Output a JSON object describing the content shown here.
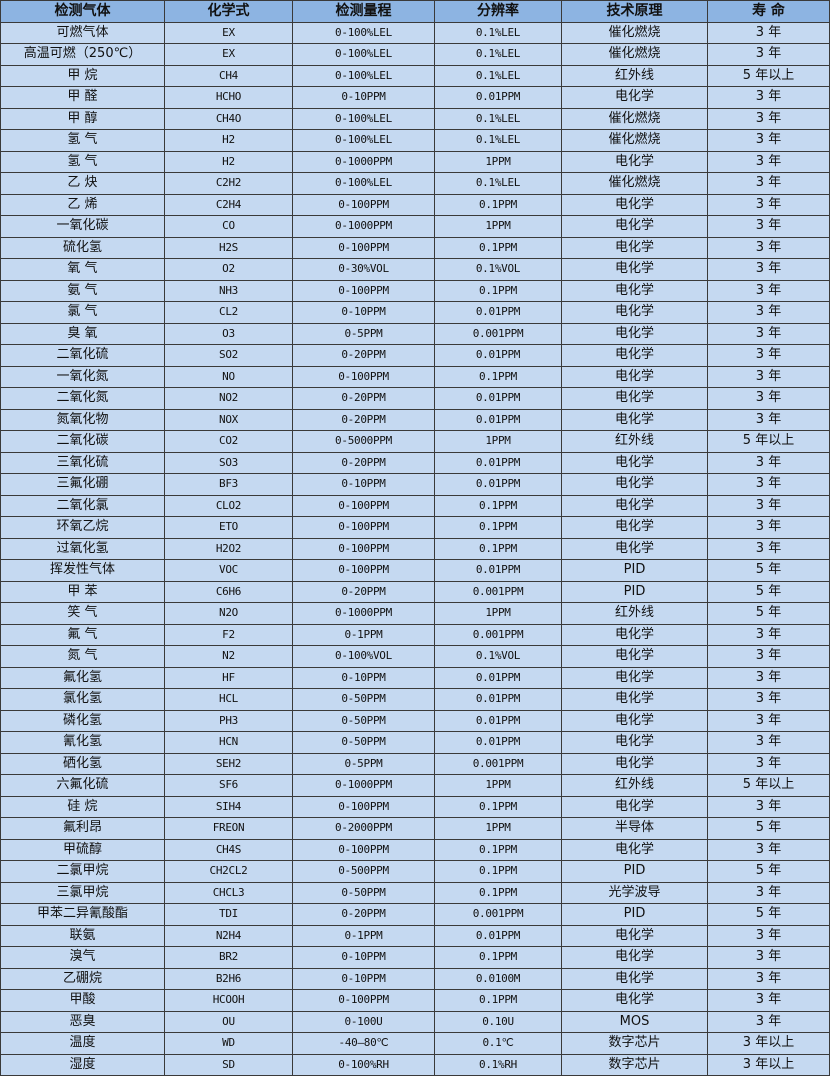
{
  "colors": {
    "header_bg": "#8db4e2",
    "cell_bg": "#c5d9f1",
    "border": "#3a3a3a"
  },
  "headers": [
    "检测气体",
    "化学式",
    "检测量程",
    "分辨率",
    "技术原理",
    "寿 命"
  ],
  "rows": [
    [
      "可燃气体",
      "EX",
      "0-100%LEL",
      "0.1%LEL",
      "催化燃烧",
      "3 年"
    ],
    [
      "高温可燃（250℃）",
      "EX",
      "0-100%LEL",
      "0.1%LEL",
      "催化燃烧",
      "3 年"
    ],
    [
      "甲 烷",
      "CH4",
      "0-100%LEL",
      "0.1%LEL",
      "红外线",
      "5 年以上"
    ],
    [
      "甲 醛",
      "HCHO",
      "0-10PPM",
      "0.01PPM",
      "电化学",
      "3 年"
    ],
    [
      "甲 醇",
      "CH4O",
      "0-100%LEL",
      "0.1%LEL",
      "催化燃烧",
      "3 年"
    ],
    [
      "氢 气",
      "H2",
      "0-100%LEL",
      "0.1%LEL",
      "催化燃烧",
      "3 年"
    ],
    [
      "氢 气",
      "H2",
      "0-1000PPM",
      "1PPM",
      "电化学",
      "3 年"
    ],
    [
      "乙 炔",
      "C2H2",
      "0-100%LEL",
      "0.1%LEL",
      "催化燃烧",
      "3 年"
    ],
    [
      "乙 烯",
      "C2H4",
      "0-100PPM",
      "0.1PPM",
      "电化学",
      "3 年"
    ],
    [
      "一氧化碳",
      "CO",
      "0-1000PPM",
      "1PPM",
      "电化学",
      "3 年"
    ],
    [
      "硫化氢",
      "H2S",
      "0-100PPM",
      "0.1PPM",
      "电化学",
      "3 年"
    ],
    [
      "氧 气",
      "O2",
      "0-30%VOL",
      "0.1%VOL",
      "电化学",
      "3 年"
    ],
    [
      "氨 气",
      "NH3",
      "0-100PPM",
      "0.1PPM",
      "电化学",
      "3 年"
    ],
    [
      "氯 气",
      "CL2",
      "0-10PPM",
      "0.01PPM",
      "电化学",
      "3 年"
    ],
    [
      "臭 氧",
      "O3",
      "0-5PPM",
      "0.001PPM",
      "电化学",
      "3 年"
    ],
    [
      "二氧化硫",
      "SO2",
      "0-20PPM",
      "0.01PPM",
      "电化学",
      "3 年"
    ],
    [
      "一氧化氮",
      "NO",
      "0-100PPM",
      "0.1PPM",
      "电化学",
      "3 年"
    ],
    [
      "二氧化氮",
      "NO2",
      "0-20PPM",
      "0.01PPM",
      "电化学",
      "3 年"
    ],
    [
      "氮氧化物",
      "NOX",
      "0-20PPM",
      "0.01PPM",
      "电化学",
      "3 年"
    ],
    [
      "二氧化碳",
      "CO2",
      "0-5000PPM",
      "1PPM",
      "红外线",
      "5 年以上"
    ],
    [
      "三氧化硫",
      "SO3",
      "0-20PPM",
      "0.01PPM",
      "电化学",
      "3 年"
    ],
    [
      "三氟化硼",
      "BF3",
      "0-10PPM",
      "0.01PPM",
      "电化学",
      "3 年"
    ],
    [
      "二氧化氯",
      "CLO2",
      "0-100PPM",
      "0.1PPM",
      "电化学",
      "3 年"
    ],
    [
      "环氧乙烷",
      "ETO",
      "0-100PPM",
      "0.1PPM",
      "电化学",
      "3 年"
    ],
    [
      "过氧化氢",
      "H2O2",
      "0-100PPM",
      "0.1PPM",
      "电化学",
      "3 年"
    ],
    [
      "挥发性气体",
      "VOC",
      "0-100PPM",
      "0.01PPM",
      "PID",
      "5 年"
    ],
    [
      "甲 苯",
      "C6H6",
      "0-20PPM",
      "0.001PPM",
      "PID",
      "5 年"
    ],
    [
      "笑 气",
      "N2O",
      "0-1000PPM",
      "1PPM",
      "红外线",
      "5 年"
    ],
    [
      "氟 气",
      "F2",
      "0-1PPM",
      "0.001PPM",
      "电化学",
      "3 年"
    ],
    [
      "氮 气",
      "N2",
      "0-100%VOL",
      "0.1%VOL",
      "电化学",
      "3 年"
    ],
    [
      "氟化氢",
      "HF",
      "0-10PPM",
      "0.01PPM",
      "电化学",
      "3 年"
    ],
    [
      "氯化氢",
      "HCL",
      "0-50PPM",
      "0.01PPM",
      "电化学",
      "3 年"
    ],
    [
      "磷化氢",
      "PH3",
      "0-50PPM",
      "0.01PPM",
      "电化学",
      "3 年"
    ],
    [
      "氰化氢",
      "HCN",
      "0-50PPM",
      "0.01PPM",
      "电化学",
      "3 年"
    ],
    [
      "硒化氢",
      "SEH2",
      "0-5PPM",
      "0.001PPM",
      "电化学",
      "3 年"
    ],
    [
      "六氟化硫",
      "SF6",
      "0-1000PPM",
      "1PPM",
      "红外线",
      "5 年以上"
    ],
    [
      "硅 烷",
      "SIH4",
      "0-100PPM",
      "0.1PPM",
      "电化学",
      "3 年"
    ],
    [
      "氟利昂",
      "FREON",
      "0-2000PPM",
      "1PPM",
      "半导体",
      "5 年"
    ],
    [
      "甲硫醇",
      "CH4S",
      "0-100PPM",
      "0.1PPM",
      "电化学",
      "3 年"
    ],
    [
      "二氯甲烷",
      "CH2CL2",
      "0-500PPM",
      "0.1PPM",
      "PID",
      "5 年"
    ],
    [
      "三氯甲烷",
      "CHCL3",
      "0-50PPM",
      "0.1PPM",
      "光学波导",
      "3 年"
    ],
    [
      "甲苯二异氰酸酯",
      "TDI",
      "0-20PPM",
      "0.001PPM",
      "PID",
      "5 年"
    ],
    [
      "联氨",
      "N2H4",
      "0-1PPM",
      "0.01PPM",
      "电化学",
      "3 年"
    ],
    [
      "溴气",
      "BR2",
      "0-10PPM",
      "0.1PPM",
      "电化学",
      "3 年"
    ],
    [
      "乙硼烷",
      "B2H6",
      "0-10PPM",
      "0.0100M",
      "电化学",
      "3 年"
    ],
    [
      "甲酸",
      "HCOOH",
      "0-100PPM",
      "0.1PPM",
      "电化学",
      "3 年"
    ],
    [
      "恶臭",
      "OU",
      "0-100U",
      "0.10U",
      "MOS",
      "3 年"
    ],
    [
      "温度",
      "WD",
      "-40—80℃",
      "0.1℃",
      "数字芯片",
      "3 年以上"
    ],
    [
      "湿度",
      "SD",
      "0-100%RH",
      "0.1%RH",
      "数字芯片",
      "3 年以上"
    ]
  ]
}
